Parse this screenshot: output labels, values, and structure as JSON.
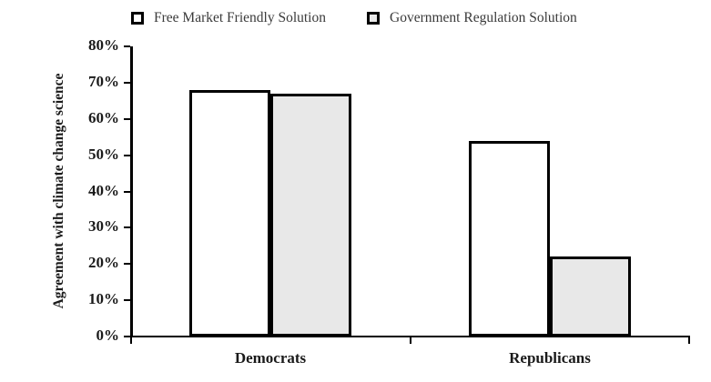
{
  "chart_data": {
    "type": "bar",
    "title": "",
    "categories": [
      "Democrats",
      "Republicans"
    ],
    "series": [
      {
        "name": "Free Market Friendly Solution",
        "values": [
          68,
          54
        ],
        "fill": "#ffffff",
        "border": "#000000"
      },
      {
        "name": "Government Regulation Solution",
        "values": [
          67,
          22
        ],
        "fill": "#e8e8e8",
        "border": "#000000"
      }
    ],
    "xlabel": "",
    "ylabel": "Agreement with climate change science",
    "ylim": [
      0,
      80
    ],
    "ytick_interval": 10,
    "ytick_labels": [
      "0%",
      "10%",
      "20%",
      "30%",
      "40%",
      "50%",
      "60%",
      "70%",
      "80%"
    ],
    "grid": false,
    "legend_position": "top",
    "axis_color": "#000000",
    "background_color": "#ffffff"
  }
}
